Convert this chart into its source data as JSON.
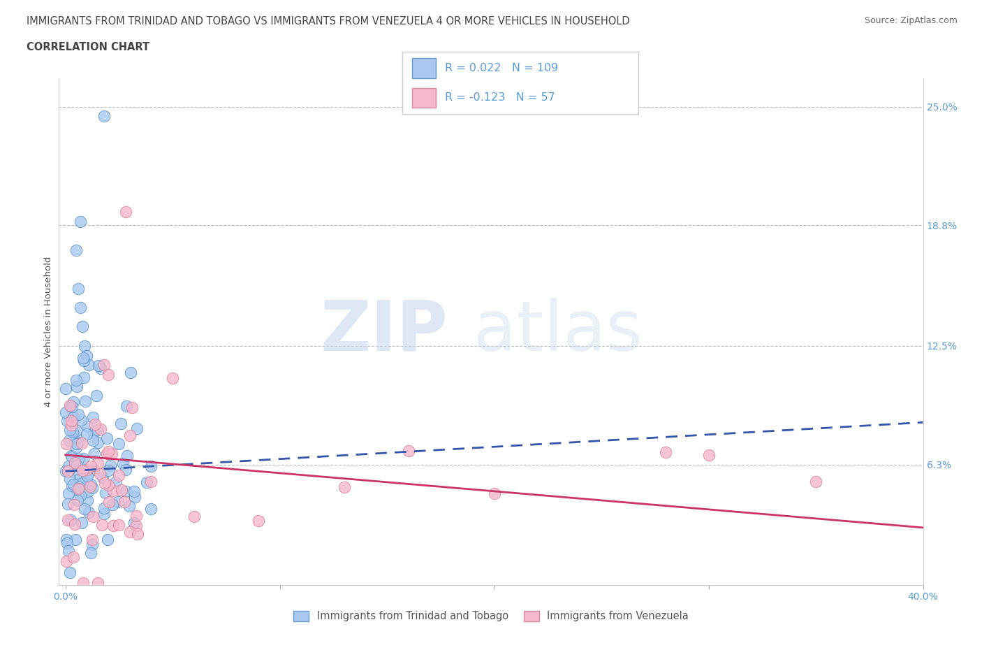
{
  "title_line1": "IMMIGRANTS FROM TRINIDAD AND TOBAGO VS IMMIGRANTS FROM VENEZUELA 4 OR MORE VEHICLES IN HOUSEHOLD",
  "title_line2": "CORRELATION CHART",
  "source_text": "Source: ZipAtlas.com",
  "watermark_zip": "ZIP",
  "watermark_atlas": "atlas",
  "ylabel": "4 or more Vehicles in Household",
  "xlim": [
    0.0,
    0.4
  ],
  "ylim": [
    0.0,
    0.265
  ],
  "xticks": [
    0.0,
    0.1,
    0.2,
    0.3,
    0.4
  ],
  "xticklabels": [
    "0.0%",
    "",
    "",
    "",
    "40.0%"
  ],
  "right_yticks": [
    0.063,
    0.125,
    0.188,
    0.25
  ],
  "right_yticklabels": [
    "6.3%",
    "12.5%",
    "18.8%",
    "25.0%"
  ],
  "hlines": [
    0.063,
    0.125,
    0.188,
    0.25
  ],
  "series1_color": "#A8C8F0",
  "series1_edge": "#6699CC",
  "series2_color": "#F5B8CC",
  "series2_edge": "#DD8899",
  "trend1_color": "#3355AA",
  "trend2_color": "#CC3366",
  "R1": 0.022,
  "N1": 109,
  "R2": -0.123,
  "N2": 57,
  "legend1_label": "Immigrants from Trinidad and Tobago",
  "legend2_label": "Immigrants from Venezuela",
  "title_color": "#444444",
  "axis_color": "#5B9BD5",
  "blue_trend_x0": 0.0,
  "blue_trend_y0": 0.0595,
  "blue_trend_x1": 0.4,
  "blue_trend_y1": 0.085,
  "pink_trend_x0": 0.0,
  "pink_trend_y0": 0.068,
  "pink_trend_x1": 0.4,
  "pink_trend_y1": 0.03
}
